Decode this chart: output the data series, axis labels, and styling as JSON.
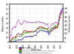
{
  "years": [
    1969,
    1970,
    1971,
    1972,
    1973,
    1974,
    1975,
    1976,
    1977,
    1978,
    1979,
    1980,
    1981,
    1982,
    1983,
    1984,
    1985,
    1986,
    1987,
    1988,
    1989,
    1990,
    1991,
    1992,
    1993,
    1994,
    1995,
    1996,
    1997,
    1998,
    1999,
    2000,
    2001,
    2002,
    2003,
    2004,
    2005,
    2006,
    2007,
    2008,
    2009,
    2010,
    2011
  ],
  "nominal_total": [
    0.3,
    0.6,
    1.6,
    1.9,
    2.1,
    2.7,
    4.4,
    5.3,
    5.1,
    5.1,
    6.5,
    9.1,
    11.3,
    11.0,
    12.1,
    11.7,
    12.5,
    12.5,
    12.5,
    13.2,
    14.2,
    15.5,
    20.2,
    22.5,
    24.5,
    24.5,
    24.6,
    24.0,
    23.0,
    22.5,
    23.0,
    17.0,
    17.8,
    22.8,
    25.0,
    27.2,
    29.5,
    30.3,
    30.4,
    37.6,
    53.6,
    64.7,
    71.8
  ],
  "real_total": [
    2.0,
    3.8,
    9.0,
    10.0,
    10.5,
    11.8,
    17.0,
    19.0,
    16.5,
    15.8,
    18.0,
    22.5,
    25.0,
    22.5,
    24.0,
    22.0,
    23.0,
    22.5,
    22.0,
    22.2,
    23.0,
    23.5,
    29.0,
    31.0,
    33.0,
    32.5,
    32.0,
    31.0,
    29.5,
    28.5,
    28.5,
    21.0,
    21.5,
    27.0,
    29.0,
    30.5,
    32.0,
    32.5,
    31.5,
    38.0,
    52.0,
    61.0,
    65.0
  ],
  "nominal_per_person": [
    10,
    15,
    32,
    36,
    38,
    46,
    65,
    75,
    70,
    68,
    80,
    98,
    112,
    110,
    115,
    112,
    118,
    120,
    122,
    126,
    135,
    140,
    155,
    160,
    163,
    160,
    163,
    160,
    157,
    157,
    160,
    130,
    133,
    158,
    170,
    182,
    195,
    200,
    200,
    238,
    320,
    365,
    385
  ],
  "real_per_person": [
    55,
    80,
    165,
    180,
    180,
    192,
    245,
    265,
    230,
    210,
    220,
    248,
    258,
    240,
    248,
    235,
    238,
    235,
    235,
    235,
    240,
    234,
    245,
    245,
    242,
    234,
    234,
    228,
    218,
    216,
    218,
    170,
    172,
    202,
    218,
    224,
    234,
    234,
    228,
    268,
    342,
    376,
    388
  ],
  "color_nominal_total": "#3333cc",
  "color_real_total": "#cc2222",
  "color_nominal_per": "#22aa22",
  "color_real_per": "#aa44bb",
  "ylabel_left": "Billions of dollars",
  "ylabel_right": "Dollars per person",
  "xlabel": "Fiscal Year",
  "ylim_left": [
    0,
    80
  ],
  "ylim_right": [
    0,
    450
  ],
  "yticks_left": [
    0,
    10,
    20,
    30,
    40,
    50,
    60,
    70,
    80
  ],
  "yticks_right": [
    0,
    50,
    100,
    150,
    200,
    250,
    300,
    350,
    400
  ],
  "xtick_start": 1970,
  "xtick_step": 5,
  "bg_color": "#ffffff",
  "legend_labels": [
    "Nominal cost",
    "Real cost (2011$)",
    "Nominal benefits per Participant (right axis)",
    "Real benefits per Participant (right axis)"
  ]
}
